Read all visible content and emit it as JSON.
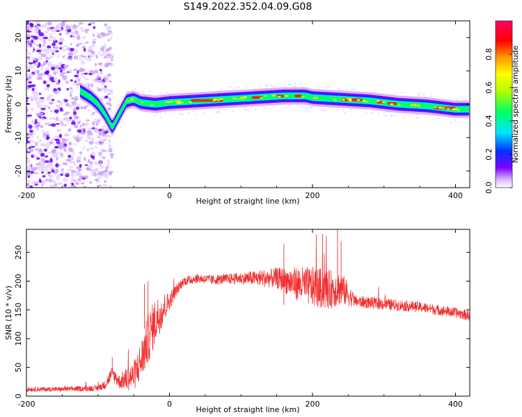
{
  "title": "S149.2022.352.04.09.G08",
  "chart_data": [
    {
      "type": "heatmap",
      "xlabel": "Height of straight line (km)",
      "ylabel": "Frequency (Hz)",
      "xlim": [
        -200,
        420
      ],
      "ylim": [
        -25,
        25
      ],
      "xticks": [
        "-200",
        "0",
        "200",
        "400"
      ],
      "yticks": [
        "-20",
        "-10",
        "0",
        "10",
        "20"
      ],
      "colorbar": {
        "label": "Normalized spectral amplitude",
        "range": [
          0,
          1
        ],
        "ticks": [
          "0.0",
          "0.2",
          "0.4",
          "0.6",
          "0.8"
        ],
        "colors": [
          "#ffffff",
          "#d9b3ff",
          "#7f00ff",
          "#0033ff",
          "#00e5ff",
          "#00ff66",
          "#b3ff00",
          "#ffff00",
          "#ff9900",
          "#ff0000",
          "#ff0066"
        ]
      },
      "ridge": {
        "x": [
          -125,
          -110,
          -100,
          -90,
          -80,
          -70,
          -60,
          -50,
          -40,
          -20,
          0,
          40,
          80,
          120,
          160,
          190,
          200,
          240,
          280,
          320,
          360,
          400,
          420
        ],
        "y": [
          4,
          2,
          0,
          -3,
          -7,
          -3,
          1,
          1.5,
          0.5,
          0,
          0.5,
          1,
          1.5,
          2,
          2.5,
          2.5,
          2,
          1.5,
          1,
          0,
          -0.5,
          -1.5,
          -1.5
        ]
      },
      "noise_region_x": [
        -200,
        -100
      ]
    },
    {
      "type": "line",
      "xlabel": "Height of straight line (km)",
      "ylabel": "SNR (10 * v/v)",
      "xlim": [
        -200,
        420
      ],
      "ylim": [
        0,
        290
      ],
      "xticks": [
        "-200",
        "0",
        "200",
        "400"
      ],
      "yticks": [
        "0",
        "50",
        "100",
        "150",
        "200",
        "250"
      ],
      "color": "#f03030",
      "series": [
        {
          "x": [
            -200,
            -150,
            -100,
            -90,
            -80,
            -70,
            -60,
            -50,
            -40,
            -30,
            -20,
            -10,
            0,
            10,
            20,
            40,
            60,
            100,
            150,
            180,
            200,
            220,
            240,
            260,
            300,
            350,
            400,
            420
          ],
          "y": [
            12,
            12,
            14,
            20,
            40,
            25,
            30,
            35,
            60,
            100,
            130,
            150,
            165,
            185,
            200,
            205,
            202,
            205,
            205,
            195,
            190,
            185,
            188,
            165,
            160,
            155,
            145,
            140
          ],
          "spread": [
            4,
            4,
            5,
            8,
            12,
            12,
            20,
            25,
            35,
            45,
            40,
            30,
            15,
            10,
            8,
            8,
            8,
            10,
            18,
            30,
            35,
            35,
            30,
            10,
            10,
            9,
            9,
            9
          ]
        }
      ]
    }
  ]
}
